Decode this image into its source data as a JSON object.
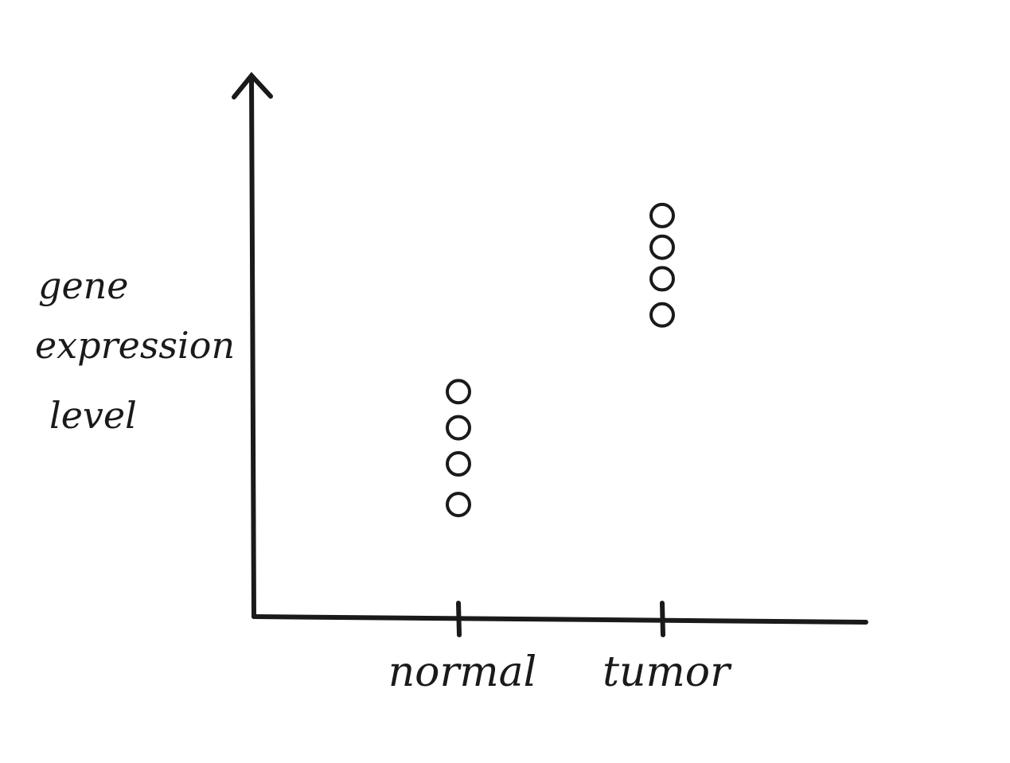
{
  "chart_data": {
    "type": "scatter",
    "title": "",
    "xlabel": "",
    "ylabel": "gene expression level",
    "ylabel_lines": [
      "gene",
      "expression",
      "level"
    ],
    "categories": [
      "normal",
      "tumor"
    ],
    "series": [
      {
        "points": [
          {
            "category": "normal",
            "y": 2.5
          },
          {
            "category": "normal",
            "y": 3.4
          },
          {
            "category": "normal",
            "y": 4.2
          },
          {
            "category": "normal",
            "y": 5.0
          },
          {
            "category": "tumor",
            "y": 6.7
          },
          {
            "category": "tumor",
            "y": 7.5
          },
          {
            "category": "tumor",
            "y": 8.2
          },
          {
            "category": "tumor",
            "y": 8.9
          }
        ]
      }
    ],
    "ylim": [
      0,
      12
    ],
    "grid": false,
    "legend": "none",
    "marker": "open-circle",
    "color": "#1a1a1a"
  }
}
